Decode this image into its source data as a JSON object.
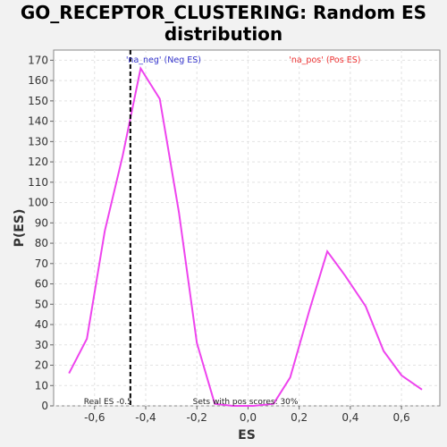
{
  "chart_data": {
    "type": "line",
    "title": "GO_RECEPTOR_CLUSTERING: Random ES distribution",
    "xlabel": "ES",
    "ylabel": "P(ES)",
    "xlim": [
      -0.76,
      0.75
    ],
    "ylim": [
      0,
      175
    ],
    "xticks": [
      -0.6,
      -0.4,
      -0.2,
      0.0,
      0.2,
      0.4,
      0.6
    ],
    "xtick_labels": [
      "-0,6",
      "-0,4",
      "-0,2",
      "0,0",
      "0,2",
      "0,4",
      "0,6"
    ],
    "yticks": [
      0,
      10,
      20,
      30,
      40,
      50,
      60,
      70,
      80,
      90,
      100,
      110,
      120,
      130,
      140,
      150,
      160,
      170
    ],
    "grid": true,
    "series": [
      {
        "name": "",
        "color": "#ee44ee",
        "x": [
          -0.7,
          -0.63,
          -0.56,
          -0.49,
          -0.42,
          -0.345,
          -0.27,
          -0.2,
          -0.13,
          -0.06,
          0.02,
          0.1,
          0.165,
          0.24,
          0.31,
          0.38,
          0.46,
          0.53,
          0.6,
          0.68
        ],
        "y": [
          16,
          33,
          86,
          123,
          166,
          151,
          95,
          31,
          1,
          0,
          0,
          1,
          14,
          47,
          76,
          64,
          49,
          27,
          15,
          8
        ]
      }
    ],
    "real_es": {
      "x": -0.46,
      "label": "Real ES -0.5"
    },
    "annotations": {
      "neg_label": "'na_neg' (Neg ES)",
      "neg_color": "#3333cc",
      "pos_label": "'na_pos' (Pos ES)",
      "pos_color": "#ee3333",
      "pos_scores": "Sets with pos scores: 30%"
    }
  }
}
